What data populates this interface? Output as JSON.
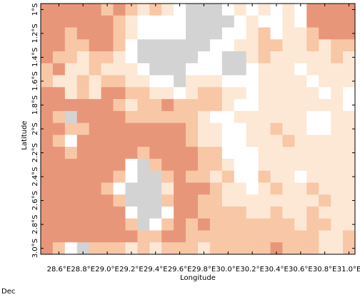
{
  "chart_data": {
    "type": "heatmap",
    "xlabel": "Longitude",
    "ylabel": "Latitude",
    "caption": "Dec",
    "colors": [
      "#d3d3d3",
      "#ffffff",
      "#fce8d5",
      "#f8c7a6",
      "#e8967a"
    ],
    "xlim": [
      28.45,
      31.05
    ],
    "ylim": [
      -3.05,
      -0.95
    ],
    "x": [
      28.5,
      28.6,
      28.7,
      28.8,
      28.9,
      29.0,
      29.1,
      29.2,
      29.3,
      29.4,
      29.5,
      29.6,
      29.7,
      29.8,
      29.9,
      30.0,
      30.1,
      30.2,
      30.3,
      30.4,
      30.5,
      30.6,
      30.7,
      30.8,
      30.9,
      31.0
    ],
    "y": [
      -1.0,
      -1.1,
      -1.2,
      -1.3,
      -1.4,
      -1.5,
      -1.6,
      -1.7,
      -1.8,
      -1.9,
      -2.0,
      -2.1,
      -2.2,
      -2.3,
      -2.4,
      -2.5,
      -2.6,
      -2.7,
      -2.8,
      -2.9,
      -3.0
    ],
    "xticks": [
      {
        "value": 28.6,
        "label": "28.6°E"
      },
      {
        "value": 28.8,
        "label": "28.8°E"
      },
      {
        "value": 29.0,
        "label": "29.0°E"
      },
      {
        "value": 29.2,
        "label": "29.2°E"
      },
      {
        "value": 29.4,
        "label": "29.4°E"
      },
      {
        "value": 29.6,
        "label": "29.6°E"
      },
      {
        "value": 29.8,
        "label": "29.8°E"
      },
      {
        "value": 30.0,
        "label": "30.0°E"
      },
      {
        "value": 30.2,
        "label": "30.2°E"
      },
      {
        "value": 30.4,
        "label": "30.4°E"
      },
      {
        "value": 30.6,
        "label": "30.6°E"
      },
      {
        "value": 30.8,
        "label": "30.8°E"
      },
      {
        "value": 31.0,
        "label": "31.0°E"
      }
    ],
    "yticks": [
      {
        "value": -1.0,
        "label": "1°S"
      },
      {
        "value": -1.2,
        "label": "1.2°S"
      },
      {
        "value": -1.4,
        "label": "1.4°S"
      },
      {
        "value": -1.6,
        "label": "1.6°S"
      },
      {
        "value": -1.8,
        "label": "1.8°S"
      },
      {
        "value": -2.0,
        "label": "2°S"
      },
      {
        "value": -2.2,
        "label": "2.2°S"
      },
      {
        "value": -2.4,
        "label": "2.4°S"
      },
      {
        "value": -2.6,
        "label": "2.6°S"
      },
      {
        "value": -2.8,
        "label": "2.8°S"
      },
      {
        "value": -3.0,
        "label": "3.0°S"
      }
    ],
    "values": [
      [
        4,
        4,
        4,
        4,
        4,
        3,
        4,
        3,
        2,
        3,
        2,
        1,
        0,
        0,
        0,
        1,
        2,
        1,
        2,
        1,
        2,
        1,
        4,
        4,
        4,
        4
      ],
      [
        4,
        4,
        4,
        4,
        4,
        4,
        3,
        2,
        1,
        1,
        1,
        1,
        0,
        0,
        0,
        0,
        1,
        2,
        1,
        1,
        2,
        1,
        4,
        4,
        4,
        4
      ],
      [
        4,
        4,
        3,
        4,
        4,
        4,
        3,
        2,
        1,
        1,
        1,
        1,
        0,
        0,
        0,
        1,
        1,
        2,
        3,
        1,
        2,
        2,
        3,
        4,
        4,
        4
      ],
      [
        4,
        4,
        3,
        3,
        4,
        4,
        3,
        1,
        0,
        0,
        0,
        0,
        0,
        0,
        1,
        1,
        2,
        2,
        3,
        3,
        2,
        2,
        3,
        2,
        3,
        3
      ],
      [
        4,
        3,
        3,
        2,
        3,
        3,
        2,
        1,
        0,
        0,
        0,
        0,
        0,
        1,
        1,
        0,
        0,
        2,
        3,
        2,
        2,
        2,
        2,
        2,
        3,
        2
      ],
      [
        3,
        4,
        2,
        2,
        3,
        2,
        2,
        2,
        1,
        0,
        0,
        0,
        1,
        1,
        1,
        0,
        0,
        1,
        2,
        2,
        2,
        1,
        2,
        2,
        2,
        2
      ],
      [
        3,
        2,
        2,
        3,
        2,
        3,
        3,
        2,
        2,
        1,
        1,
        0,
        2,
        2,
        2,
        1,
        1,
        1,
        2,
        2,
        2,
        2,
        1,
        2,
        2,
        2
      ],
      [
        4,
        4,
        2,
        3,
        2,
        4,
        4,
        3,
        3,
        2,
        2,
        1,
        2,
        3,
        3,
        2,
        2,
        1,
        2,
        2,
        2,
        2,
        2,
        1,
        2,
        1
      ],
      [
        4,
        4,
        4,
        4,
        4,
        4,
        3,
        2,
        3,
        3,
        4,
        3,
        3,
        3,
        3,
        2,
        1,
        1,
        2,
        2,
        2,
        2,
        2,
        2,
        2,
        1
      ],
      [
        4,
        3,
        0,
        4,
        4,
        4,
        4,
        3,
        3,
        3,
        3,
        3,
        3,
        2,
        1,
        1,
        2,
        2,
        2,
        2,
        2,
        2,
        1,
        1,
        2,
        2
      ],
      [
        4,
        4,
        3,
        3,
        4,
        4,
        4,
        4,
        4,
        4,
        4,
        4,
        3,
        2,
        2,
        1,
        1,
        2,
        2,
        3,
        2,
        2,
        1,
        1,
        2,
        2
      ],
      [
        4,
        3,
        1,
        4,
        4,
        4,
        4,
        4,
        4,
        4,
        4,
        4,
        3,
        2,
        2,
        1,
        1,
        2,
        2,
        2,
        3,
        2,
        2,
        2,
        2,
        2
      ],
      [
        4,
        4,
        3,
        4,
        4,
        4,
        4,
        4,
        3,
        4,
        4,
        4,
        4,
        3,
        3,
        1,
        1,
        1,
        2,
        2,
        2,
        2,
        2,
        2,
        2,
        2
      ],
      [
        4,
        4,
        4,
        4,
        4,
        4,
        4,
        1,
        0,
        3,
        4,
        4,
        4,
        3,
        3,
        2,
        1,
        1,
        2,
        2,
        2,
        2,
        2,
        2,
        2,
        2
      ],
      [
        4,
        4,
        4,
        4,
        4,
        4,
        3,
        1,
        0,
        0,
        3,
        4,
        3,
        3,
        2,
        3,
        1,
        1,
        3,
        2,
        2,
        1,
        2,
        2,
        2,
        2
      ],
      [
        4,
        4,
        4,
        4,
        4,
        3,
        1,
        0,
        0,
        0,
        2,
        4,
        4,
        4,
        3,
        2,
        2,
        1,
        2,
        3,
        2,
        2,
        3,
        2,
        2,
        2
      ],
      [
        4,
        4,
        4,
        4,
        4,
        4,
        3,
        0,
        0,
        0,
        3,
        4,
        4,
        3,
        3,
        2,
        2,
        2,
        2,
        2,
        2,
        2,
        2,
        3,
        2,
        2
      ],
      [
        4,
        4,
        4,
        4,
        4,
        4,
        4,
        1,
        0,
        0,
        1,
        4,
        4,
        3,
        3,
        3,
        3,
        2,
        2,
        3,
        2,
        2,
        3,
        2,
        2,
        2
      ],
      [
        4,
        4,
        4,
        4,
        4,
        4,
        4,
        3,
        0,
        1,
        3,
        4,
        3,
        4,
        3,
        3,
        3,
        3,
        3,
        3,
        3,
        2,
        3,
        3,
        2,
        2
      ],
      [
        4,
        4,
        4,
        4,
        4,
        4,
        4,
        4,
        3,
        3,
        4,
        4,
        3,
        3,
        3,
        3,
        3,
        3,
        3,
        3,
        3,
        3,
        3,
        2,
        2,
        3
      ],
      [
        4,
        3,
        1,
        0,
        3,
        3,
        3,
        2,
        3,
        2,
        3,
        3,
        3,
        2,
        3,
        3,
        3,
        3,
        3,
        4,
        3,
        3,
        3,
        2,
        2,
        3
      ]
    ]
  }
}
